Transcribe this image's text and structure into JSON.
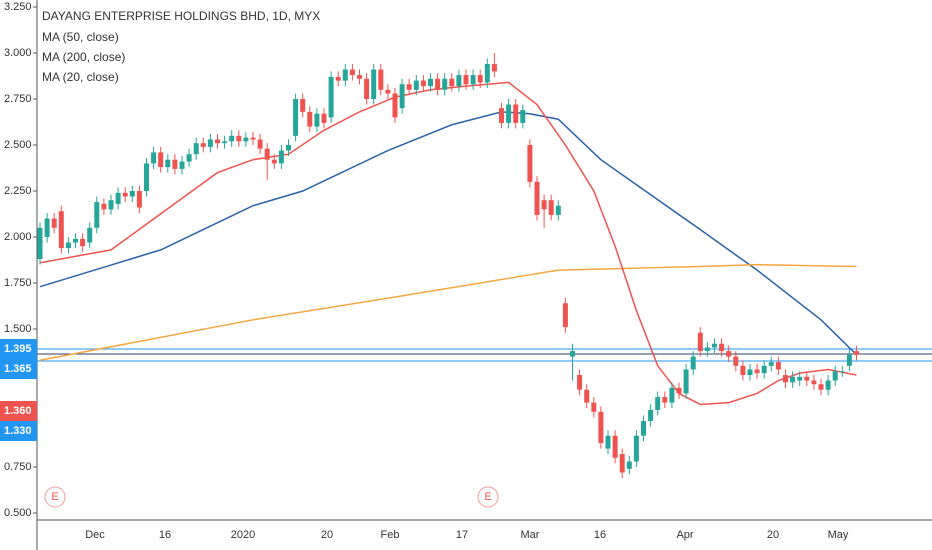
{
  "chart_data": {
    "type": "candlestick",
    "title": "DAYANG ENTERPRISE HOLDINGS BHD, 1D, MYX",
    "up_color": "#26a69a",
    "down_color": "#ef5350",
    "open": [
      1.88,
      2.0,
      2.1,
      2.14,
      1.94,
      1.97,
      1.99,
      1.97,
      2.05,
      2.18,
      2.15,
      2.18,
      2.24,
      2.22,
      2.25,
      2.25,
      2.4,
      2.46,
      2.38,
      2.42,
      2.37,
      2.41,
      2.45,
      2.51,
      2.49,
      2.53,
      2.51,
      2.52,
      2.55,
      2.52,
      2.54,
      2.53,
      2.48,
      2.42,
      2.4,
      2.47,
      2.55,
      2.75,
      2.68,
      2.6,
      2.67,
      2.65,
      2.87,
      2.85,
      2.91,
      2.88,
      2.86,
      2.75,
      2.91,
      2.8,
      2.78,
      2.7,
      2.83,
      2.8,
      2.85,
      2.82,
      2.86,
      2.8,
      2.86,
      2.82,
      2.88,
      2.83,
      2.88,
      2.84,
      2.94,
      2.7,
      2.62,
      2.72,
      2.62,
      2.5,
      2.3,
      2.2,
      2.2,
      2.12,
      1.64,
      1.35,
      1.25,
      1.17,
      1.1,
      1.05,
      0.85,
      0.92,
      0.82,
      0.74,
      0.78,
      0.92,
      1.0,
      1.06,
      1.13,
      1.1,
      1.18,
      1.15,
      1.28,
      1.48,
      1.38,
      1.4,
      1.42,
      1.38,
      1.35,
      1.3,
      1.25,
      1.28,
      1.26,
      1.3,
      1.32,
      1.25,
      1.21,
      1.22,
      1.24,
      1.22,
      1.2,
      1.17,
      1.22,
      1.27,
      1.3,
      1.38
    ],
    "high": [
      2.08,
      2.13,
      2.13,
      2.17,
      2.0,
      2.02,
      2.02,
      2.08,
      2.22,
      2.21,
      2.23,
      2.27,
      2.27,
      2.28,
      2.28,
      2.43,
      2.49,
      2.49,
      2.45,
      2.45,
      2.44,
      2.48,
      2.54,
      2.54,
      2.56,
      2.56,
      2.55,
      2.58,
      2.58,
      2.57,
      2.57,
      2.56,
      2.51,
      2.45,
      2.5,
      2.53,
      2.78,
      2.78,
      2.71,
      2.7,
      2.7,
      2.9,
      2.9,
      2.94,
      2.94,
      2.91,
      2.89,
      2.94,
      2.94,
      2.83,
      2.81,
      2.86,
      2.86,
      2.88,
      2.88,
      2.89,
      2.89,
      2.89,
      2.89,
      2.91,
      2.91,
      2.91,
      2.91,
      2.97,
      3.0,
      2.73,
      2.75,
      2.75,
      2.72,
      2.53,
      2.33,
      2.23,
      2.23,
      2.2,
      1.67,
      1.42,
      1.28,
      1.2,
      1.13,
      1.08,
      0.95,
      0.95,
      0.85,
      0.81,
      0.95,
      1.03,
      1.09,
      1.16,
      1.16,
      1.21,
      1.21,
      1.31,
      1.38,
      1.51,
      1.43,
      1.45,
      1.45,
      1.41,
      1.38,
      1.33,
      1.31,
      1.31,
      1.33,
      1.35,
      1.35,
      1.28,
      1.27,
      1.27,
      1.27,
      1.25,
      1.23,
      1.25,
      1.3,
      1.3,
      1.39,
      1.41
    ],
    "low": [
      1.85,
      1.97,
      2.02,
      1.91,
      1.91,
      1.94,
      1.92,
      1.94,
      2.02,
      2.12,
      2.12,
      2.15,
      2.19,
      2.19,
      2.13,
      2.22,
      2.37,
      2.35,
      2.35,
      2.34,
      2.34,
      2.38,
      2.42,
      2.46,
      2.46,
      2.48,
      2.48,
      2.49,
      2.49,
      2.49,
      2.5,
      2.45,
      2.31,
      2.37,
      2.37,
      2.44,
      2.52,
      2.65,
      2.57,
      2.57,
      2.59,
      2.62,
      2.82,
      2.82,
      2.85,
      2.83,
      2.72,
      2.72,
      2.77,
      2.75,
      2.62,
      2.67,
      2.77,
      2.77,
      2.79,
      2.79,
      2.77,
      2.77,
      2.79,
      2.79,
      2.8,
      2.8,
      2.81,
      2.81,
      2.87,
      2.59,
      2.59,
      2.59,
      2.59,
      2.27,
      2.09,
      2.05,
      2.09,
      2.09,
      1.48,
      1.22,
      1.14,
      1.07,
      1.02,
      0.85,
      0.82,
      0.77,
      0.69,
      0.71,
      0.75,
      0.89,
      0.97,
      1.03,
      1.07,
      1.07,
      1.12,
      1.12,
      1.25,
      1.35,
      1.35,
      1.37,
      1.35,
      1.32,
      1.27,
      1.22,
      1.22,
      1.23,
      1.23,
      1.27,
      1.25,
      1.18,
      1.18,
      1.19,
      1.19,
      1.17,
      1.14,
      1.14,
      1.19,
      1.24,
      1.27,
      1.33
    ],
    "close": [
      2.05,
      2.1,
      2.05,
      1.94,
      1.97,
      1.99,
      1.95,
      2.05,
      2.19,
      2.15,
      2.2,
      2.24,
      2.22,
      2.25,
      2.16,
      2.4,
      2.46,
      2.38,
      2.42,
      2.37,
      2.41,
      2.45,
      2.51,
      2.49,
      2.53,
      2.51,
      2.52,
      2.55,
      2.52,
      2.54,
      2.53,
      2.48,
      2.42,
      2.4,
      2.47,
      2.5,
      2.75,
      2.68,
      2.6,
      2.67,
      2.62,
      2.87,
      2.85,
      2.91,
      2.88,
      2.86,
      2.75,
      2.91,
      2.8,
      2.78,
      2.65,
      2.83,
      2.8,
      2.85,
      2.82,
      2.86,
      2.8,
      2.86,
      2.82,
      2.88,
      2.83,
      2.88,
      2.84,
      2.94,
      2.9,
      2.62,
      2.72,
      2.62,
      2.69,
      2.3,
      2.12,
      2.15,
      2.12,
      2.17,
      1.51,
      1.38,
      1.17,
      1.1,
      1.05,
      0.88,
      0.92,
      0.8,
      0.72,
      0.78,
      0.92,
      1.0,
      1.06,
      1.13,
      1.1,
      1.18,
      1.15,
      1.28,
      1.35,
      1.38,
      1.4,
      1.42,
      1.38,
      1.35,
      1.3,
      1.25,
      1.28,
      1.26,
      1.3,
      1.32,
      1.28,
      1.21,
      1.24,
      1.24,
      1.22,
      1.2,
      1.17,
      1.22,
      1.27,
      1.27,
      1.36,
      1.36
    ],
    "series": [
      {
        "name": "MA (50, close)",
        "color": "#2962a8",
        "x": [
          0,
          17,
          30,
          37,
          49,
          58,
          65,
          69,
          73,
          79,
          93,
          101,
          110,
          115
        ],
        "values": [
          1.73,
          1.93,
          2.17,
          2.25,
          2.47,
          2.61,
          2.68,
          2.67,
          2.64,
          2.42,
          2.04,
          1.82,
          1.55,
          1.36
        ]
      },
      {
        "name": "MA (200, close)",
        "color": "#f5a742",
        "x": [
          0,
          30,
          51,
          73,
          93,
          101,
          115
        ],
        "values": [
          1.33,
          1.55,
          1.68,
          1.82,
          1.84,
          1.85,
          1.84
        ]
      },
      {
        "name": "MA (20, close)",
        "color": "#ef5350",
        "x": [
          0,
          10,
          15,
          20,
          25,
          30,
          35,
          40,
          45,
          50,
          55,
          60,
          66,
          70,
          74,
          78,
          81,
          84,
          87,
          90,
          93,
          97,
          101,
          104,
          107,
          111,
          115
        ],
        "values": [
          1.86,
          1.93,
          2.07,
          2.21,
          2.35,
          2.42,
          2.45,
          2.58,
          2.68,
          2.76,
          2.8,
          2.82,
          2.84,
          2.72,
          2.5,
          2.25,
          1.95,
          1.6,
          1.3,
          1.15,
          1.09,
          1.1,
          1.15,
          1.22,
          1.26,
          1.28,
          1.25
        ]
      }
    ],
    "ylim": [
      0.462,
      3.288
    ],
    "yticks": [
      {
        "value": 0.5,
        "label": "0.500"
      },
      {
        "value": 0.75,
        "label": "0.750"
      },
      {
        "value": 1.5,
        "label": "1.500"
      },
      {
        "value": 1.75,
        "label": "1.750"
      },
      {
        "value": 2.0,
        "label": "2.000"
      },
      {
        "value": 2.25,
        "label": "2.250"
      },
      {
        "value": 2.5,
        "label": "2.500"
      },
      {
        "value": 2.75,
        "label": "2.750"
      },
      {
        "value": 3.0,
        "label": "3.000"
      },
      {
        "value": 3.25,
        "label": "3.250"
      }
    ],
    "xticks": [
      "Dec",
      "16",
      "2020",
      "20",
      "Feb",
      "17",
      "Mar",
      "16",
      "Apr",
      "20",
      "May"
    ],
    "price_labels": [
      {
        "label": "1.395",
        "color": "#2196f3"
      },
      {
        "label": "1.365",
        "color": "#2196f3"
      },
      {
        "label": "1.360",
        "color": "#ef5350"
      },
      {
        "label": "1.330",
        "color": "#2196f3"
      }
    ],
    "events": [
      {
        "label": "E"
      },
      {
        "label": "E"
      }
    ]
  }
}
